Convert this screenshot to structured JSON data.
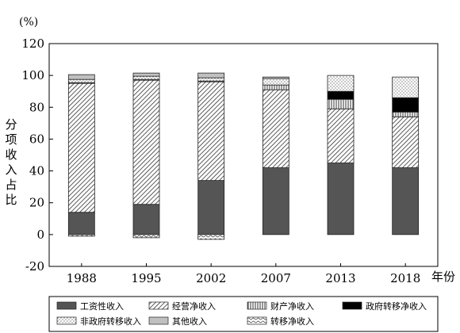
{
  "chart_data": {
    "type": "bar",
    "stacked": true,
    "title": "",
    "unit_label": "(%)",
    "ylabel": "分项收入占比",
    "xlabel": "年份",
    "ylim": [
      -20,
      120
    ],
    "yticks": [
      -20,
      0,
      20,
      40,
      60,
      80,
      100,
      120
    ],
    "grid": false,
    "legend_position": "bottom",
    "categories": [
      "1988",
      "1995",
      "2002",
      "2007",
      "2013",
      "2018"
    ],
    "series": [
      {
        "name": "工资性收入",
        "pattern": "solid-dark",
        "color": "#555555",
        "values": [
          14,
          19,
          34,
          42,
          45,
          42
        ]
      },
      {
        "name": "经营净收入",
        "pattern": "hatch",
        "color": "#444444",
        "values": [
          81,
          78,
          62,
          49,
          34,
          32
        ]
      },
      {
        "name": "财产净收入",
        "pattern": "vlines",
        "color": "#444444",
        "values": [
          0.5,
          0.5,
          0.5,
          3,
          6,
          3
        ]
      },
      {
        "name": "政府转移净收入",
        "pattern": "solid-black",
        "color": "#000000",
        "values": [
          0,
          0,
          0,
          0,
          5,
          9
        ]
      },
      {
        "name": "非政府转移收入",
        "pattern": "dots",
        "color": "#666666",
        "values": [
          2,
          2,
          2,
          4,
          10,
          13
        ]
      },
      {
        "name": "其他收入",
        "pattern": "solid-light",
        "color": "#c0c0c0",
        "values": [
          3,
          2,
          3,
          1,
          0,
          0
        ]
      },
      {
        "name": "转移净收入",
        "pattern": "waves",
        "color": "#555555",
        "values": [
          -1,
          -2,
          -3,
          0,
          0,
          0
        ]
      }
    ]
  }
}
